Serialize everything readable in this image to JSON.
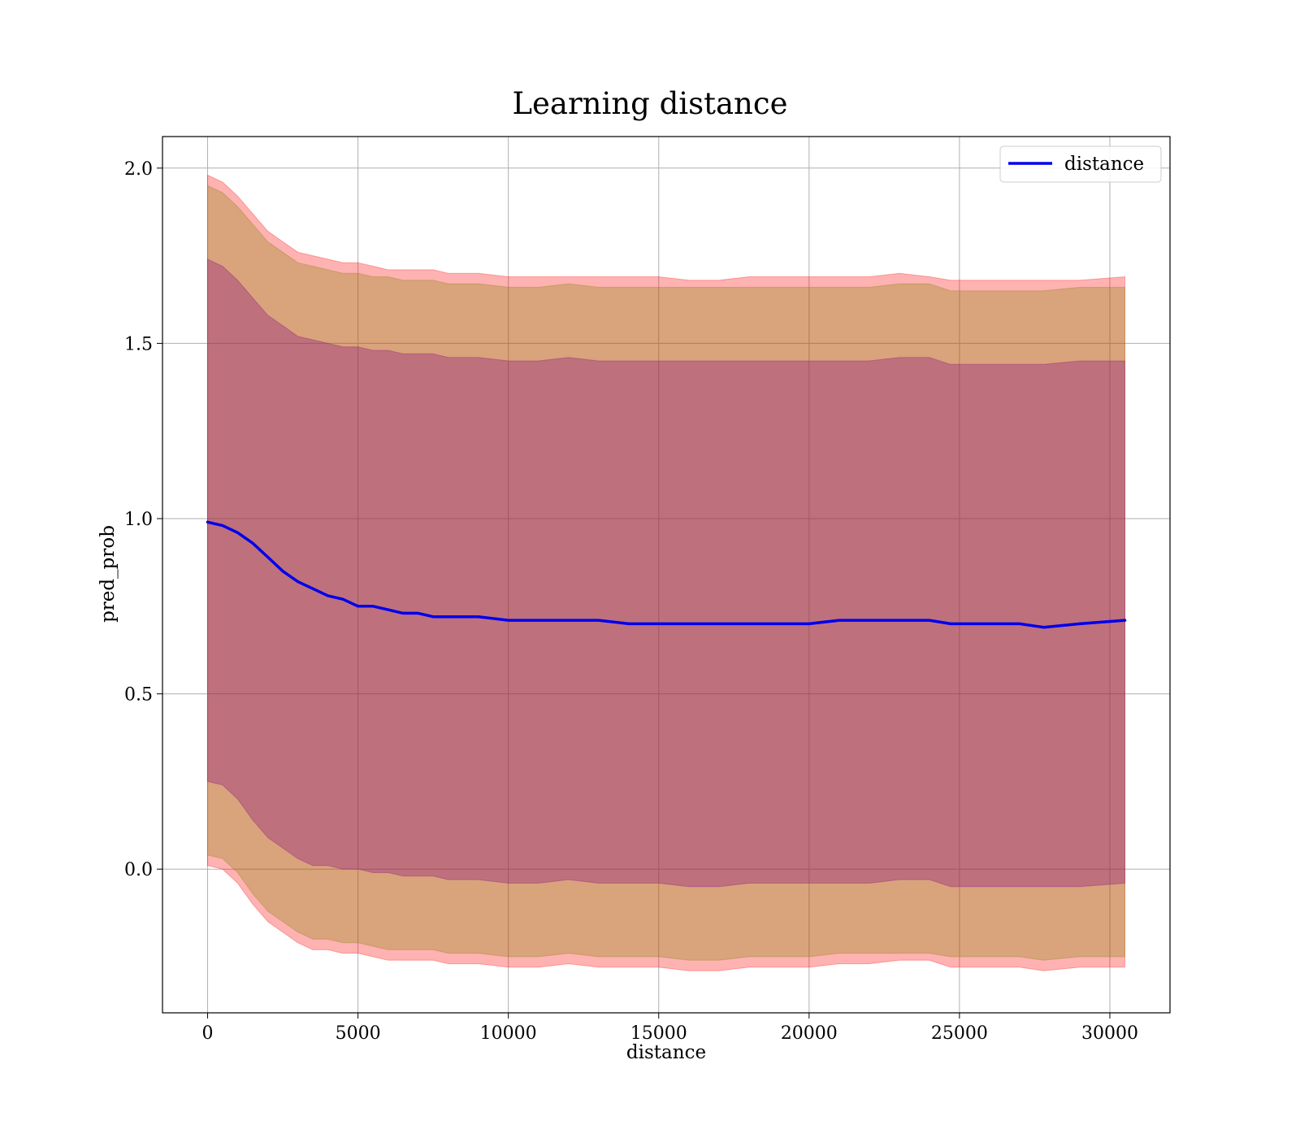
{
  "chart_data": {
    "type": "line",
    "title": "Learning distance",
    "xlabel": "distance",
    "ylabel": "pred_prob",
    "xlim": [
      -1500,
      32000
    ],
    "ylim": [
      -0.41,
      2.09
    ],
    "grid": true,
    "legend_position": "top-right",
    "x_ticks": [
      0,
      5000,
      10000,
      15000,
      20000,
      25000,
      30000
    ],
    "x_tick_labels": [
      "0",
      "5000",
      "10000",
      "15000",
      "20000",
      "25000",
      "30000"
    ],
    "y_ticks": [
      0.0,
      0.5,
      1.0,
      1.5,
      2.0
    ],
    "y_tick_labels": [
      "0.0",
      "0.5",
      "1.0",
      "1.5",
      "2.0"
    ],
    "x": [
      0,
      500,
      1000,
      1500,
      2000,
      2500,
      3000,
      3500,
      4000,
      4500,
      5000,
      5500,
      6000,
      6500,
      7000,
      7500,
      8000,
      9000,
      10000,
      11000,
      12000,
      13000,
      14000,
      15000,
      16000,
      17000,
      18000,
      19000,
      20000,
      21000,
      22000,
      23000,
      24000,
      24700,
      26000,
      27000,
      27800,
      29000,
      30500
    ],
    "series": [
      {
        "name": "distance",
        "color": "#0000ee",
        "values": [
          0.99,
          0.98,
          0.96,
          0.93,
          0.89,
          0.85,
          0.82,
          0.8,
          0.78,
          0.77,
          0.75,
          0.75,
          0.74,
          0.73,
          0.73,
          0.72,
          0.72,
          0.72,
          0.71,
          0.71,
          0.71,
          0.71,
          0.7,
          0.7,
          0.7,
          0.7,
          0.7,
          0.7,
          0.7,
          0.71,
          0.71,
          0.71,
          0.71,
          0.7,
          0.7,
          0.7,
          0.69,
          0.7,
          0.71
        ]
      }
    ],
    "bands": [
      {
        "color": "#ff0000",
        "opacity": 0.3,
        "upper": [
          1.98,
          1.96,
          1.92,
          1.87,
          1.82,
          1.79,
          1.76,
          1.75,
          1.74,
          1.73,
          1.73,
          1.72,
          1.71,
          1.71,
          1.71,
          1.71,
          1.7,
          1.7,
          1.69,
          1.69,
          1.69,
          1.69,
          1.69,
          1.69,
          1.68,
          1.68,
          1.69,
          1.69,
          1.69,
          1.69,
          1.69,
          1.7,
          1.69,
          1.68,
          1.68,
          1.68,
          1.68,
          1.68,
          1.69
        ],
        "lower": [
          0.01,
          0.0,
          -0.04,
          -0.1,
          -0.15,
          -0.18,
          -0.21,
          -0.23,
          -0.23,
          -0.24,
          -0.24,
          -0.25,
          -0.26,
          -0.26,
          -0.26,
          -0.26,
          -0.27,
          -0.27,
          -0.28,
          -0.28,
          -0.27,
          -0.28,
          -0.28,
          -0.28,
          -0.29,
          -0.29,
          -0.28,
          -0.28,
          -0.28,
          -0.27,
          -0.27,
          -0.26,
          -0.26,
          -0.28,
          -0.28,
          -0.28,
          -0.29,
          -0.28,
          -0.28
        ]
      },
      {
        "color": "#808000",
        "opacity": 0.3,
        "upper": [
          1.95,
          1.93,
          1.89,
          1.84,
          1.79,
          1.76,
          1.73,
          1.72,
          1.71,
          1.7,
          1.7,
          1.69,
          1.69,
          1.68,
          1.68,
          1.68,
          1.67,
          1.67,
          1.66,
          1.66,
          1.67,
          1.66,
          1.66,
          1.66,
          1.66,
          1.66,
          1.66,
          1.66,
          1.66,
          1.66,
          1.66,
          1.67,
          1.67,
          1.65,
          1.65,
          1.65,
          1.65,
          1.66,
          1.66
        ],
        "lower": [
          0.04,
          0.03,
          -0.01,
          -0.07,
          -0.12,
          -0.15,
          -0.18,
          -0.2,
          -0.2,
          -0.21,
          -0.21,
          -0.22,
          -0.23,
          -0.23,
          -0.23,
          -0.23,
          -0.24,
          -0.24,
          -0.25,
          -0.25,
          -0.24,
          -0.25,
          -0.25,
          -0.25,
          -0.26,
          -0.26,
          -0.25,
          -0.25,
          -0.25,
          -0.24,
          -0.24,
          -0.24,
          -0.24,
          -0.25,
          -0.25,
          -0.25,
          -0.26,
          -0.25,
          -0.25
        ]
      },
      {
        "color": "#800080",
        "opacity": 0.3,
        "upper": [
          1.74,
          1.72,
          1.68,
          1.63,
          1.58,
          1.55,
          1.52,
          1.51,
          1.5,
          1.49,
          1.49,
          1.48,
          1.48,
          1.47,
          1.47,
          1.47,
          1.46,
          1.46,
          1.45,
          1.45,
          1.46,
          1.45,
          1.45,
          1.45,
          1.45,
          1.45,
          1.45,
          1.45,
          1.45,
          1.45,
          1.45,
          1.46,
          1.46,
          1.44,
          1.44,
          1.44,
          1.44,
          1.45,
          1.45
        ],
        "lower": [
          0.25,
          0.24,
          0.2,
          0.14,
          0.09,
          0.06,
          0.03,
          0.01,
          0.01,
          0.0,
          0.0,
          -0.01,
          -0.01,
          -0.02,
          -0.02,
          -0.02,
          -0.03,
          -0.03,
          -0.04,
          -0.04,
          -0.03,
          -0.04,
          -0.04,
          -0.04,
          -0.05,
          -0.05,
          -0.04,
          -0.04,
          -0.04,
          -0.04,
          -0.04,
          -0.03,
          -0.03,
          -0.05,
          -0.05,
          -0.05,
          -0.05,
          -0.05,
          -0.04
        ]
      }
    ]
  }
}
